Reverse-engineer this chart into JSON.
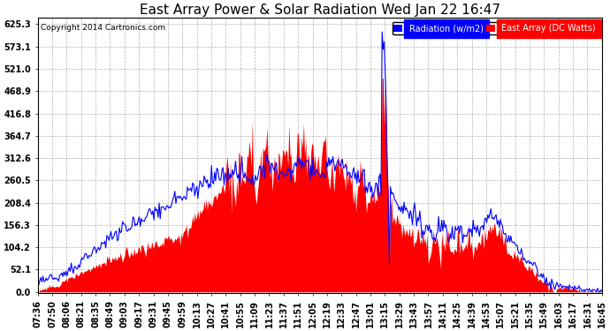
{
  "title": "East Array Power & Solar Radiation Wed Jan 22 16:47",
  "copyright": "Copyright 2014 Cartronics.com",
  "legend_labels": [
    "Radiation (w/m2)",
    "East Array (DC Watts)"
  ],
  "legend_colors": [
    "blue",
    "red"
  ],
  "yticks": [
    0.0,
    52.1,
    104.2,
    156.3,
    208.4,
    260.5,
    312.6,
    364.7,
    416.8,
    468.9,
    521.0,
    573.1,
    625.3
  ],
  "ymax": 640,
  "ymin": -3,
  "xtick_labels": [
    "07:36",
    "07:50",
    "08:06",
    "08:21",
    "08:35",
    "08:49",
    "09:03",
    "09:17",
    "09:31",
    "09:45",
    "09:59",
    "10:13",
    "10:27",
    "10:41",
    "10:55",
    "11:09",
    "11:23",
    "11:37",
    "11:51",
    "12:05",
    "12:19",
    "12:33",
    "12:47",
    "13:01",
    "13:15",
    "13:29",
    "13:43",
    "13:57",
    "14:11",
    "14:25",
    "14:39",
    "14:53",
    "15:07",
    "15:21",
    "15:35",
    "15:49",
    "16:03",
    "16:17",
    "16:31",
    "16:45"
  ],
  "background_color": "#ffffff",
  "plot_bg_color": "#ffffff",
  "grid_color": "#aaaaaa",
  "title_fontsize": 11,
  "tick_fontsize": 7,
  "radiation_color": "blue",
  "power_color": "red"
}
